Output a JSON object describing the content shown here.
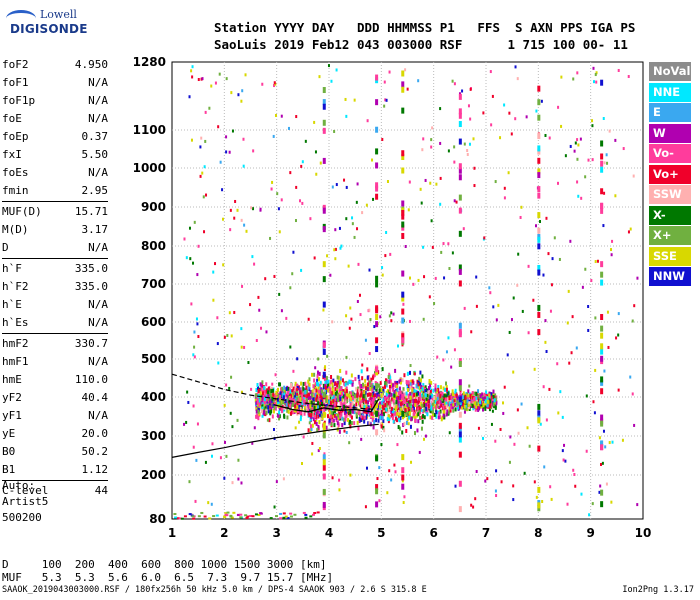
{
  "logo": {
    "line1": "Lowell",
    "line2": "DIGISONDE"
  },
  "header": {
    "line1": "Station YYYY DAY   DDD HHMMSS P1   FFS  S AXN PPS IGA PS",
    "line2": "SaoLuis 2019 Feb12 043 003000 RSF      1 715 100 00- 11"
  },
  "params": [
    {
      "k": "foF2",
      "v": "4.950"
    },
    {
      "k": "foF1",
      "v": "N/A"
    },
    {
      "k": "foF1p",
      "v": "N/A"
    },
    {
      "k": "foE",
      "v": "N/A"
    },
    {
      "k": "foEp",
      "v": "0.37"
    },
    {
      "k": "fxI",
      "v": "5.50"
    },
    {
      "k": "foEs",
      "v": "N/A"
    },
    {
      "k": "fmin",
      "v": "2.95"
    },
    {
      "k": "MUF(D)",
      "v": "15.71"
    },
    {
      "k": "M(D)",
      "v": "3.17"
    },
    {
      "k": "D",
      "v": "N/A"
    },
    {
      "k": "h`F",
      "v": "335.0"
    },
    {
      "k": "h`F2",
      "v": "335.0"
    },
    {
      "k": "h`E",
      "v": "N/A"
    },
    {
      "k": "h`Es",
      "v": "N/A"
    },
    {
      "k": "hmF2",
      "v": "330.7"
    },
    {
      "k": "hmF1",
      "v": "N/A"
    },
    {
      "k": "hmE",
      "v": "110.0"
    },
    {
      "k": "yF2",
      "v": "40.4"
    },
    {
      "k": "yF1",
      "v": "N/A"
    },
    {
      "k": "yE",
      "v": "20.0"
    },
    {
      "k": "B0",
      "v": "50.2"
    },
    {
      "k": "B1",
      "v": "1.12"
    },
    {
      "k": "C-level",
      "v": "44"
    }
  ],
  "auto": {
    "line1": "Auto:",
    "line2": "Artist5",
    "line3": "500200"
  },
  "legend": [
    {
      "label": "NoVal",
      "color": "#8c8c8c"
    },
    {
      "label": "NNE",
      "color": "#00e8ff"
    },
    {
      "label": "E",
      "color": "#3aa8f0"
    },
    {
      "label": "W",
      "color": "#b000b0"
    },
    {
      "label": "Vo-",
      "color": "#ff3c9c"
    },
    {
      "label": "Vo+",
      "color": "#f0002a"
    },
    {
      "label": "SSW",
      "color": "#ffb0b0"
    },
    {
      "label": "X-",
      "color": "#007800"
    },
    {
      "label": "X+",
      "color": "#70b040"
    },
    {
      "label": "SSE",
      "color": "#d8d800"
    },
    {
      "label": "NNW",
      "color": "#1010d0"
    }
  ],
  "muf_table": {
    "d_row": "D     100  200  400  600  800 1000 1500 3000 [km]",
    "muf_row": "MUF   5.3  5.3  5.6  6.0  6.5  7.3  9.7 15.7 [MHz]"
  },
  "footer": {
    "left": "SAAOK_2019043003000.RSF / 180fx256h 50 kHz 5.0 km / DPS-4 SAAOK 903 / 2.6 S 315.8 E",
    "right": "Ion2Png 1.3.17"
  },
  "chart_data": {
    "type": "scatter",
    "xlabel": "",
    "ylabel": "",
    "xlim": [
      1,
      10
    ],
    "ylim": [
      80,
      1280
    ],
    "x_ticks": [
      1,
      2,
      3,
      4,
      5,
      6,
      7,
      8,
      9,
      10
    ],
    "y_ticks": [
      80,
      200,
      300,
      400,
      500,
      600,
      700,
      800,
      900,
      1000,
      1100,
      1280
    ],
    "y_scale": "nonlinear (ionogram virtual height)",
    "grid": true,
    "cluster": {
      "f_start": 2.6,
      "f_end": 7.2,
      "h_center": 390,
      "h_spread": 60
    },
    "series": [
      {
        "type": "dashed-curve",
        "x": [
          1.0,
          1.5,
          2.0,
          2.5,
          3.0,
          3.5,
          4.0,
          4.5,
          4.9
        ],
        "y": [
          460,
          440,
          420,
          405,
          395,
          385,
          378,
          372,
          368
        ]
      },
      {
        "type": "trace",
        "x": [
          2.95,
          3.3,
          3.6,
          3.9,
          4.2,
          4.5,
          4.8,
          4.95
        ],
        "y": [
          380,
          368,
          362,
          372,
          366,
          368,
          362,
          395
        ]
      },
      {
        "type": "profile",
        "x": [
          1.0,
          1.5,
          2.0,
          2.5,
          3.0,
          3.5,
          4.0,
          4.5,
          4.95
        ],
        "y": [
          245,
          258,
          270,
          284,
          296,
          305,
          315,
          324,
          330
        ]
      }
    ]
  }
}
